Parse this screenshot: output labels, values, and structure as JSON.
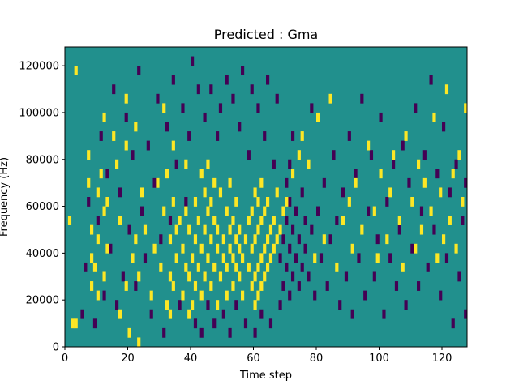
{
  "chart_data": {
    "type": "heatmap",
    "title": "Predicted : Gma",
    "xlabel": "Time step",
    "ylabel": "Frequency (Hz)",
    "xlim": [
      0,
      128
    ],
    "ylim": [
      0,
      128000
    ],
    "x_ticks": [
      0,
      20,
      40,
      60,
      80,
      100,
      120
    ],
    "y_ticks": [
      0,
      20000,
      40000,
      60000,
      80000,
      100000,
      120000
    ],
    "x_tick_labels": [
      "0",
      "20",
      "40",
      "60",
      "80",
      "100",
      "120"
    ],
    "y_tick_labels": [
      "0",
      "20000",
      "40000",
      "60000",
      "80000",
      "100000",
      "120000"
    ],
    "grid": false,
    "colormap": "viridis",
    "background_value": 0,
    "colors": {
      "background": "#21908d",
      "high": "#fde725",
      "low": "#440154"
    },
    "time_bins": 128,
    "freq_bins": 32,
    "freq_bin_hz": 4000,
    "cells": {
      "high": [
        [
          1,
          13
        ],
        [
          2,
          2
        ],
        [
          3,
          2
        ],
        [
          3,
          29
        ],
        [
          7,
          17
        ],
        [
          7,
          20
        ],
        [
          8,
          6
        ],
        [
          8,
          9
        ],
        [
          8,
          12
        ],
        [
          9,
          8
        ],
        [
          10,
          5
        ],
        [
          10,
          11
        ],
        [
          10,
          16
        ],
        [
          11,
          18
        ],
        [
          12,
          7
        ],
        [
          12,
          14
        ],
        [
          12,
          24
        ],
        [
          13,
          10
        ],
        [
          13,
          15
        ],
        [
          15,
          22
        ],
        [
          16,
          19
        ],
        [
          17,
          3
        ],
        [
          17,
          13
        ],
        [
          19,
          6
        ],
        [
          19,
          21
        ],
        [
          19,
          26
        ],
        [
          20,
          1
        ],
        [
          21,
          9
        ],
        [
          22,
          11
        ],
        [
          22,
          23
        ],
        [
          23,
          0
        ],
        [
          23,
          7
        ],
        [
          24,
          16
        ],
        [
          25,
          12
        ],
        [
          27,
          5
        ],
        [
          28,
          10
        ],
        [
          29,
          17
        ],
        [
          30,
          8
        ],
        [
          31,
          14
        ],
        [
          31,
          25
        ],
        [
          32,
          4
        ],
        [
          32,
          18
        ],
        [
          33,
          3
        ],
        [
          33,
          7
        ],
        [
          33,
          11
        ],
        [
          34,
          6
        ],
        [
          34,
          15
        ],
        [
          34,
          21
        ],
        [
          35,
          9
        ],
        [
          35,
          12
        ],
        [
          36,
          13
        ],
        [
          37,
          5
        ],
        [
          37,
          10
        ],
        [
          38,
          8
        ],
        [
          38,
          14
        ],
        [
          38,
          19
        ],
        [
          39,
          3
        ],
        [
          39,
          7
        ],
        [
          39,
          12
        ],
        [
          40,
          4
        ],
        [
          40,
          9
        ],
        [
          41,
          6
        ],
        [
          41,
          11
        ],
        [
          41,
          15
        ],
        [
          42,
          8
        ],
        [
          42,
          13
        ],
        [
          43,
          5
        ],
        [
          43,
          10
        ],
        [
          43,
          18
        ],
        [
          44,
          7
        ],
        [
          44,
          12
        ],
        [
          44,
          16
        ],
        [
          45,
          9
        ],
        [
          45,
          14
        ],
        [
          45,
          19
        ],
        [
          46,
          6
        ],
        [
          46,
          11
        ],
        [
          46,
          15
        ],
        [
          47,
          8
        ],
        [
          47,
          13
        ],
        [
          47,
          17
        ],
        [
          48,
          4
        ],
        [
          48,
          10
        ],
        [
          48,
          12
        ],
        [
          49,
          7
        ],
        [
          49,
          16
        ],
        [
          50,
          9
        ],
        [
          50,
          11
        ],
        [
          51,
          5
        ],
        [
          51,
          8
        ],
        [
          51,
          14
        ],
        [
          52,
          10
        ],
        [
          52,
          12
        ],
        [
          52,
          17
        ],
        [
          53,
          6
        ],
        [
          53,
          9
        ],
        [
          53,
          13
        ],
        [
          54,
          8
        ],
        [
          54,
          11
        ],
        [
          54,
          15
        ],
        [
          55,
          7
        ],
        [
          55,
          10
        ],
        [
          55,
          12
        ],
        [
          56,
          5
        ],
        [
          56,
          9
        ],
        [
          57,
          11
        ],
        [
          58,
          8
        ],
        [
          58,
          13
        ],
        [
          59,
          6
        ],
        [
          59,
          10
        ],
        [
          59,
          14
        ],
        [
          60,
          4
        ],
        [
          60,
          7
        ],
        [
          60,
          11
        ],
        [
          60,
          16
        ],
        [
          61,
          5
        ],
        [
          61,
          8
        ],
        [
          61,
          12
        ],
        [
          61,
          15
        ],
        [
          62,
          6
        ],
        [
          62,
          9
        ],
        [
          62,
          13
        ],
        [
          62,
          17
        ],
        [
          63,
          7
        ],
        [
          63,
          10
        ],
        [
          63,
          14
        ],
        [
          64,
          8
        ],
        [
          64,
          11
        ],
        [
          64,
          15
        ],
        [
          65,
          9
        ],
        [
          65,
          12
        ],
        [
          66,
          10
        ],
        [
          66,
          13
        ],
        [
          67,
          11
        ],
        [
          67,
          16
        ],
        [
          68,
          12
        ],
        [
          69,
          14
        ],
        [
          70,
          15
        ],
        [
          72,
          18
        ],
        [
          74,
          20
        ],
        [
          75,
          22
        ],
        [
          77,
          19
        ],
        [
          79,
          9
        ],
        [
          80,
          24
        ],
        [
          82,
          11
        ],
        [
          84,
          26
        ],
        [
          86,
          8
        ],
        [
          88,
          13
        ],
        [
          90,
          15
        ],
        [
          91,
          10
        ],
        [
          92,
          17
        ],
        [
          94,
          12
        ],
        [
          96,
          21
        ],
        [
          98,
          14
        ],
        [
          99,
          9
        ],
        [
          100,
          18
        ],
        [
          102,
          11
        ],
        [
          103,
          16
        ],
        [
          104,
          20
        ],
        [
          106,
          13
        ],
        [
          107,
          8
        ],
        [
          108,
          22
        ],
        [
          110,
          15
        ],
        [
          111,
          10
        ],
        [
          112,
          19
        ],
        [
          113,
          12
        ],
        [
          114,
          17
        ],
        [
          116,
          14
        ],
        [
          117,
          24
        ],
        [
          118,
          9
        ],
        [
          119,
          16
        ],
        [
          120,
          11
        ],
        [
          121,
          27
        ],
        [
          122,
          13
        ],
        [
          123,
          18
        ],
        [
          124,
          10
        ],
        [
          125,
          20
        ],
        [
          126,
          15
        ],
        [
          127,
          25
        ]
      ],
      "low": [
        [
          5,
          3
        ],
        [
          6,
          8
        ],
        [
          7,
          15
        ],
        [
          9,
          2
        ],
        [
          10,
          13
        ],
        [
          11,
          22
        ],
        [
          12,
          5
        ],
        [
          13,
          18
        ],
        [
          14,
          10
        ],
        [
          15,
          27
        ],
        [
          16,
          4
        ],
        [
          17,
          16
        ],
        [
          18,
          7
        ],
        [
          19,
          24
        ],
        [
          20,
          12
        ],
        [
          21,
          20
        ],
        [
          22,
          6
        ],
        [
          23,
          29
        ],
        [
          24,
          14
        ],
        [
          25,
          9
        ],
        [
          26,
          21
        ],
        [
          27,
          3
        ],
        [
          28,
          17
        ],
        [
          29,
          26
        ],
        [
          30,
          11
        ],
        [
          31,
          1
        ],
        [
          32,
          23
        ],
        [
          33,
          13
        ],
        [
          34,
          28
        ],
        [
          35,
          19
        ],
        [
          36,
          4
        ],
        [
          37,
          25
        ],
        [
          38,
          15
        ],
        [
          39,
          22
        ],
        [
          40,
          30
        ],
        [
          41,
          2
        ],
        [
          42,
          27
        ],
        [
          43,
          1
        ],
        [
          44,
          24
        ],
        [
          45,
          4
        ],
        [
          46,
          27
        ],
        [
          47,
          2
        ],
        [
          48,
          22
        ],
        [
          49,
          25
        ],
        [
          50,
          3
        ],
        [
          51,
          28
        ],
        [
          52,
          1
        ],
        [
          53,
          26
        ],
        [
          54,
          4
        ],
        [
          55,
          23
        ],
        [
          56,
          29
        ],
        [
          57,
          2
        ],
        [
          58,
          20
        ],
        [
          59,
          27
        ],
        [
          60,
          1
        ],
        [
          61,
          25
        ],
        [
          62,
          3
        ],
        [
          63,
          22
        ],
        [
          64,
          28
        ],
        [
          65,
          2
        ],
        [
          66,
          19
        ],
        [
          67,
          26
        ],
        [
          68,
          4
        ],
        [
          68,
          9
        ],
        [
          69,
          6
        ],
        [
          69,
          11
        ],
        [
          70,
          8
        ],
        [
          70,
          13
        ],
        [
          70,
          17
        ],
        [
          71,
          5
        ],
        [
          71,
          10
        ],
        [
          71,
          15
        ],
        [
          71,
          19
        ],
        [
          72,
          7
        ],
        [
          72,
          12
        ],
        [
          72,
          22
        ],
        [
          73,
          9
        ],
        [
          73,
          14
        ],
        [
          74,
          6
        ],
        [
          74,
          11
        ],
        [
          75,
          8
        ],
        [
          75,
          16
        ],
        [
          76,
          10
        ],
        [
          76,
          13
        ],
        [
          77,
          7
        ],
        [
          78,
          12
        ],
        [
          78,
          25
        ],
        [
          79,
          5
        ],
        [
          80,
          14
        ],
        [
          81,
          9
        ],
        [
          82,
          17
        ],
        [
          83,
          6
        ],
        [
          84,
          11
        ],
        [
          85,
          20
        ],
        [
          86,
          13
        ],
        [
          87,
          4
        ],
        [
          88,
          16
        ],
        [
          89,
          7
        ],
        [
          90,
          22
        ],
        [
          91,
          3
        ],
        [
          92,
          18
        ],
        [
          93,
          9
        ],
        [
          94,
          26
        ],
        [
          95,
          5
        ],
        [
          96,
          14
        ],
        [
          97,
          20
        ],
        [
          98,
          7
        ],
        [
          99,
          11
        ],
        [
          100,
          24
        ],
        [
          101,
          3
        ],
        [
          102,
          15
        ],
        [
          103,
          9
        ],
        [
          104,
          19
        ],
        [
          105,
          6
        ],
        [
          106,
          12
        ],
        [
          107,
          21
        ],
        [
          108,
          4
        ],
        [
          109,
          17
        ],
        [
          110,
          10
        ],
        [
          111,
          25
        ],
        [
          112,
          6
        ],
        [
          113,
          14
        ],
        [
          114,
          20
        ],
        [
          115,
          8
        ],
        [
          116,
          28
        ],
        [
          117,
          12
        ],
        [
          118,
          18
        ],
        [
          119,
          5
        ],
        [
          120,
          23
        ],
        [
          121,
          9
        ],
        [
          122,
          16
        ],
        [
          123,
          2
        ],
        [
          124,
          19
        ],
        [
          125,
          7
        ],
        [
          126,
          13
        ],
        [
          127,
          3
        ],
        [
          127,
          17
        ]
      ]
    }
  }
}
